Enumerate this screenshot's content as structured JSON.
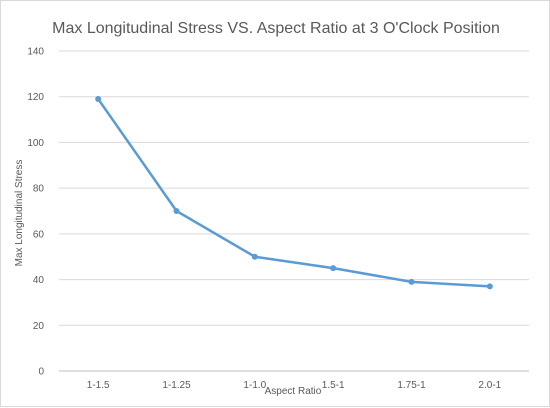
{
  "chart_data": {
    "type": "line",
    "title": "Max Longitudinal Stress VS. Aspect Ratio at 3 O'Clock Position",
    "xlabel": "Aspect Ratio",
    "ylabel": "Max Longitudinal Stress",
    "categories": [
      "1-1.5",
      "1-1.25",
      "1-1.0",
      "1.5-1",
      "1.75-1",
      "2.0-1"
    ],
    "series": [
      {
        "values": [
          119,
          70,
          50,
          45,
          39,
          37
        ]
      }
    ],
    "ylim": [
      0,
      140
    ],
    "yticks": [
      0,
      20,
      40,
      60,
      80,
      100,
      120,
      140
    ],
    "grid": true,
    "legend": "none",
    "colors": {
      "line": "#5b9bd5",
      "grid": "#d9d9d9",
      "axis": "#bfbfbf",
      "text": "#595959"
    }
  }
}
